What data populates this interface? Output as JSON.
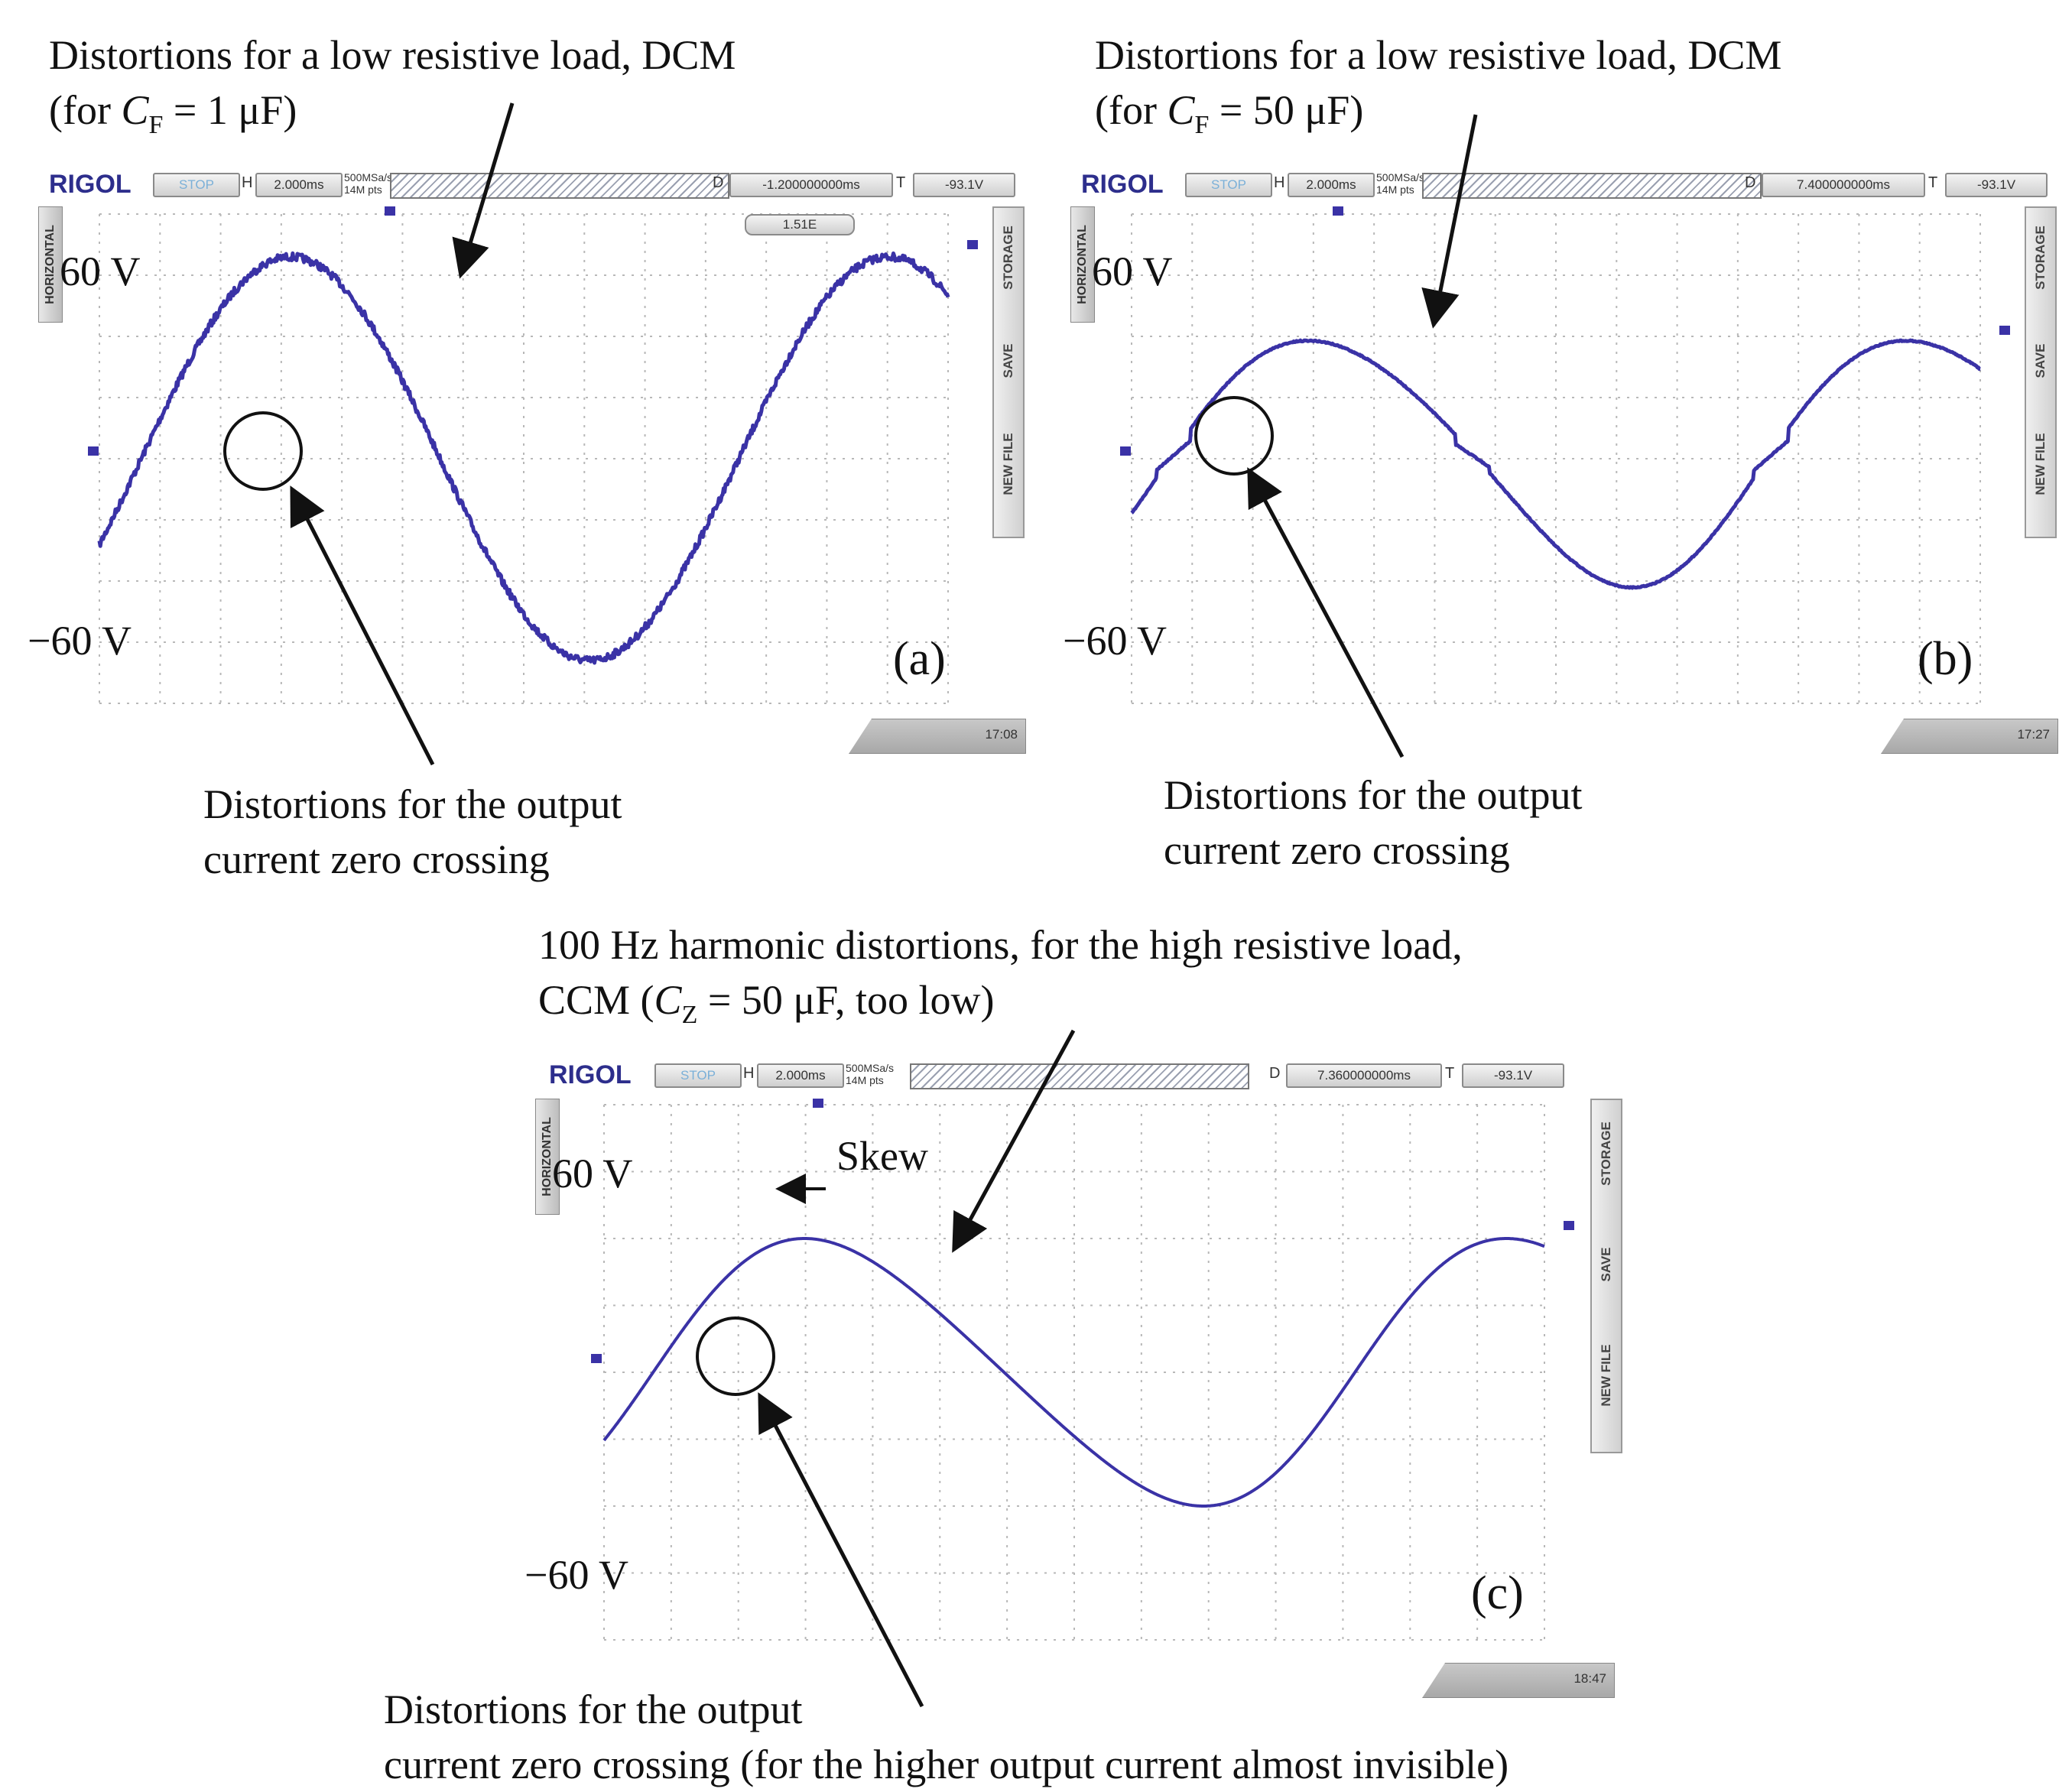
{
  "figure": {
    "accent_color": "#3a32a6",
    "annotation_color": "#111111"
  },
  "panels": [
    {
      "id": "a",
      "caption_top_line1": "Distortions for a low resistive load, DCM",
      "caption_top_line2_pre": "(for ",
      "caption_top_var": "C",
      "caption_top_sub": "F",
      "caption_top_line2_post": " = 1 μF)",
      "caption_bottom_line1": "Distortions for the output",
      "caption_bottom_line2": "current zero crossing",
      "panel_label": "(a)",
      "y_top_label": "60 V",
      "y_bottom_label": "−60 V",
      "toolbar": {
        "brand": "RIGOL",
        "run_state": "STOP",
        "h_label": "H",
        "timebase": "2.000ms",
        "sample_rate": "500MSa/s",
        "memory": "14M pts",
        "d_label": "D",
        "delay": "-1.200000000ms",
        "t_label": "T",
        "trigger": "-93.1V"
      },
      "side_tab": "HORIZONTAL",
      "menu": [
        "STORAGE",
        "SAVE",
        "NEW FILE"
      ],
      "status": "17:08",
      "channel_badge": "1.51E",
      "trace": {
        "shape": "sine",
        "amplitude_v": 66,
        "noise": "high"
      }
    },
    {
      "id": "b",
      "caption_top_line1": "Distortions for a low resistive load, DCM",
      "caption_top_line2_pre": "(for ",
      "caption_top_var": "C",
      "caption_top_sub": "F",
      "caption_top_line2_post": " = 50 μF)",
      "caption_bottom_line1": "Distortions for the output",
      "caption_bottom_line2": "current zero crossing",
      "panel_label": "(b)",
      "y_top_label": "60 V",
      "y_bottom_label": "−60 V",
      "toolbar": {
        "brand": "RIGOL",
        "run_state": "STOP",
        "h_label": "H",
        "timebase": "2.000ms",
        "sample_rate": "500MSa/s",
        "memory": "14M pts",
        "d_label": "D",
        "delay": "7.400000000ms",
        "t_label": "T",
        "trigger": "-93.1V"
      },
      "side_tab": "HORIZONTAL",
      "menu": [
        "STORAGE",
        "SAVE",
        "NEW FILE"
      ],
      "status": "17:27",
      "trace": {
        "shape": "distorted-sine",
        "amplitude_v": 40,
        "noise": "low"
      }
    },
    {
      "id": "c",
      "caption_top_line1": "100 Hz harmonic distortions, for the high resistive load,",
      "caption_top_line2_pre": "CCM (",
      "caption_top_var": "C",
      "caption_top_sub": "Z",
      "caption_top_line2_post": " = 50 μF, too low)",
      "skew_label": "Skew",
      "caption_bottom_line1": "Distortions for the output",
      "caption_bottom_line2": "current zero crossing (for the higher output current almost invisible)",
      "panel_label": "(c)",
      "y_top_label": "60 V",
      "y_bottom_label": "−60 V",
      "toolbar": {
        "brand": "RIGOL",
        "run_state": "STOP",
        "h_label": "H",
        "timebase": "2.000ms",
        "sample_rate": "500MSa/s",
        "memory": "14M pts",
        "d_label": "D",
        "delay": "7.360000000ms",
        "t_label": "T",
        "trigger": "-93.1V"
      },
      "side_tab": "HORIZONTAL",
      "menu": [
        "STORAGE",
        "SAVE",
        "NEW FILE"
      ],
      "status": "18:47",
      "trace": {
        "shape": "skewed-sine",
        "amplitude_v": 40,
        "noise": "none"
      }
    }
  ]
}
